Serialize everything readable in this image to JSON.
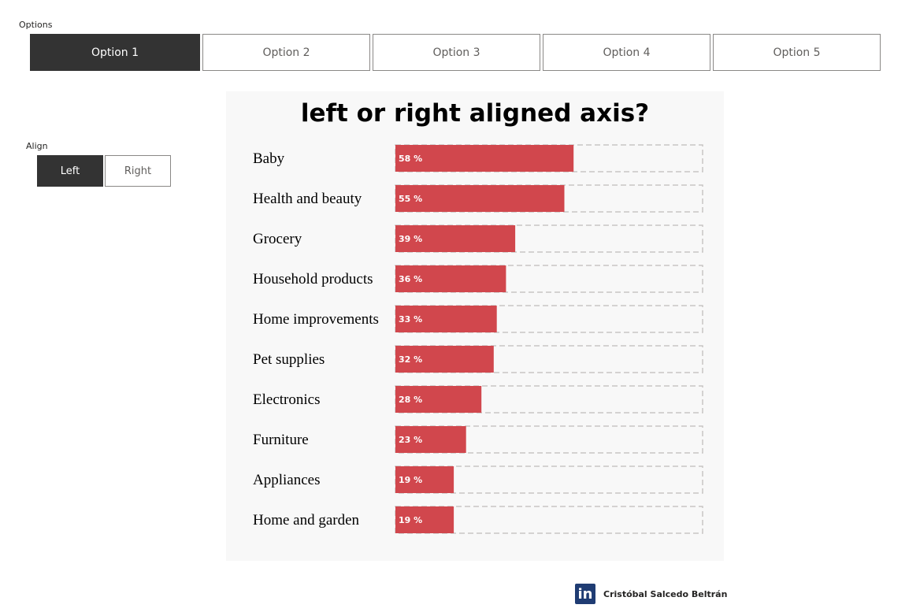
{
  "options": {
    "label": "Options",
    "items": [
      "Option 1",
      "Option 2",
      "Option 3",
      "Option 4",
      "Option 5"
    ],
    "selected": 0
  },
  "align": {
    "label": "Align",
    "left_label": "Left",
    "right_label": "Right",
    "selected": "Left"
  },
  "chart_data": {
    "type": "bar",
    "title": "left or right aligned axis?",
    "orientation": "horizontal",
    "categories": [
      "Baby",
      "Health and beauty",
      "Grocery",
      "Household products",
      "Home improvements",
      "Pet supplies",
      "Electronics",
      "Furniture",
      "Appliances",
      "Home and garden"
    ],
    "values": [
      58,
      55,
      39,
      36,
      33,
      32,
      28,
      23,
      19,
      19
    ],
    "value_labels": [
      "58 %",
      "55 %",
      "39 %",
      "36 %",
      "33 %",
      "32 %",
      "28 %",
      "23 %",
      "19 %",
      "19 %"
    ],
    "xlim": [
      0,
      100
    ],
    "bar_color": "#d1474d",
    "track_color": "#f8f8f8",
    "grid": false,
    "xlabel": "",
    "ylabel": ""
  },
  "author": {
    "logo": "in",
    "name": "Cristóbal Salcedo Beltrán"
  },
  "colors": {
    "active_button": "#333333",
    "panel_background": "#f8f8f8",
    "linkedin": "#1f3c73"
  }
}
